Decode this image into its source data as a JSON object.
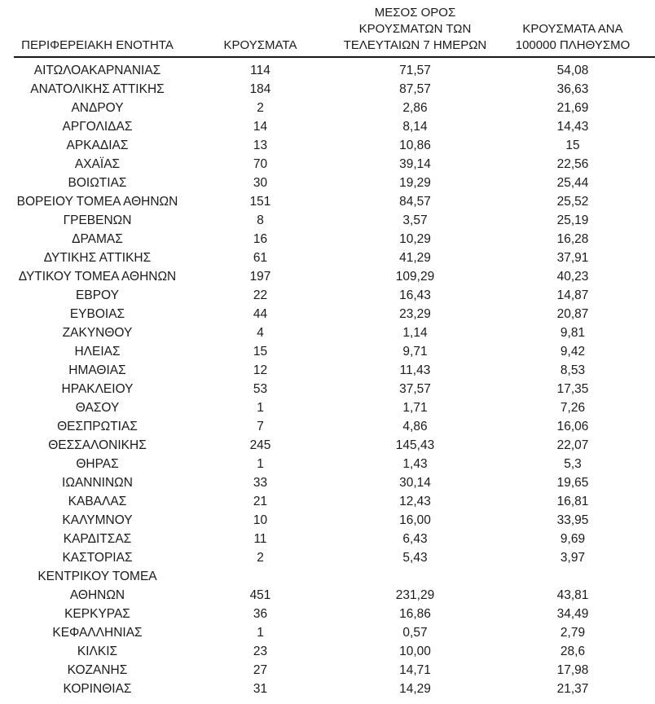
{
  "page": {
    "background_color": "#ffffff",
    "text_color": "#1b1b1b",
    "rule_color": "#161616"
  },
  "table": {
    "columns": [
      {
        "id": "region",
        "label": "ΠΕΡΙΦΕΡΕΙΑΚΗ ΕΝΟΤΗΤΑ"
      },
      {
        "id": "cases",
        "label": "ΚΡΟΥΣΜΑΤΑ"
      },
      {
        "id": "avg7day",
        "label": "ΜΕΣΟΣ ΟΡΟΣ\nΚΡΟΥΣΜΑΤΩΝ ΤΩΝ\nΤΕΛΕΥΤΑΙΩΝ 7 ΗΜΕΡΩΝ"
      },
      {
        "id": "per100k",
        "label": "ΚΡΟΥΣΜΑΤΑ ΑΝΑ\n100000 ΠΛΗΘΥΣΜΟ"
      }
    ],
    "rows": [
      [
        "ΑΙΤΩΛΟΑΚΑΡΝΑΝΙΑΣ",
        "114",
        "71,57",
        "54,08"
      ],
      [
        "ΑΝΑΤΟΛΙΚΗΣ ΑΤΤΙΚΗΣ",
        "184",
        "87,57",
        "36,63"
      ],
      [
        "ΑΝΔΡΟΥ",
        "2",
        "2,86",
        "21,69"
      ],
      [
        "ΑΡΓΟΛΙΔΑΣ",
        "14",
        "8,14",
        "14,43"
      ],
      [
        "ΑΡΚΑΔΙΑΣ",
        "13",
        "10,86",
        "15"
      ],
      [
        "ΑΧΑΪΑΣ",
        "70",
        "39,14",
        "22,56"
      ],
      [
        "ΒΟΙΩΤΙΑΣ",
        "30",
        "19,29",
        "25,44"
      ],
      [
        "ΒΟΡΕΙΟΥ ΤΟΜΕΑ ΑΘΗΝΩΝ",
        "151",
        "84,57",
        "25,52"
      ],
      [
        "ΓΡΕΒΕΝΩΝ",
        "8",
        "3,57",
        "25,19"
      ],
      [
        "ΔΡΑΜΑΣ",
        "16",
        "10,29",
        "16,28"
      ],
      [
        "ΔΥΤΙΚΗΣ ΑΤΤΙΚΗΣ",
        "61",
        "41,29",
        "37,91"
      ],
      [
        "ΔΥΤΙΚΟΥ ΤΟΜΕΑ ΑΘΗΝΩΝ",
        "197",
        "109,29",
        "40,23"
      ],
      [
        "ΕΒΡΟΥ",
        "22",
        "16,43",
        "14,87"
      ],
      [
        "ΕΥΒΟΙΑΣ",
        "44",
        "23,29",
        "20,87"
      ],
      [
        "ΖΑΚΥΝΘΟΥ",
        "4",
        "1,14",
        "9,81"
      ],
      [
        "ΗΛΕΙΑΣ",
        "15",
        "9,71",
        "9,42"
      ],
      [
        "ΗΜΑΘΙΑΣ",
        "12",
        "11,43",
        "8,53"
      ],
      [
        "ΗΡΑΚΛΕΙΟΥ",
        "53",
        "37,57",
        "17,35"
      ],
      [
        "ΘΑΣΟΥ",
        "1",
        "1,71",
        "7,26"
      ],
      [
        "ΘΕΣΠΡΩΤΙΑΣ",
        "7",
        "4,86",
        "16,06"
      ],
      [
        "ΘΕΣΣΑΛΟΝΙΚΗΣ",
        "245",
        "145,43",
        "22,07"
      ],
      [
        "ΘΗΡΑΣ",
        "1",
        "1,43",
        "5,3"
      ],
      [
        "ΙΩΑΝΝΙΝΩΝ",
        "33",
        "30,14",
        "19,65"
      ],
      [
        "ΚΑΒΑΛΑΣ",
        "21",
        "12,43",
        "16,81"
      ],
      [
        "ΚΑΛΥΜΝΟΥ",
        "10",
        "16,00",
        "33,95"
      ],
      [
        "ΚΑΡΔΙΤΣΑΣ",
        "11",
        "6,43",
        "9,69"
      ],
      [
        "ΚΑΣΤΟΡΙΑΣ",
        "2",
        "5,43",
        "3,97"
      ],
      [
        "ΚΕΝΤΡΙΚΟΥ ΤΟΜΕΑ\nΑΘΗΝΩΝ",
        "451",
        "231,29",
        "43,81"
      ],
      [
        "ΚΕΡΚΥΡΑΣ",
        "36",
        "16,86",
        "34,49"
      ],
      [
        "ΚΕΦΑΛΛΗΝΙΑΣ",
        "1",
        "0,57",
        "2,79"
      ],
      [
        "ΚΙΛΚΙΣ",
        "23",
        "10,00",
        "28,6"
      ],
      [
        "ΚΟΖΑΝΗΣ",
        "27",
        "14,71",
        "17,98"
      ],
      [
        "ΚΟΡΙΝΘΙΑΣ",
        "31",
        "14,29",
        "21,37"
      ]
    ],
    "cell_names": [
      "region-cell",
      "cases-cell",
      "avg7day-cell",
      "per100k-cell"
    ]
  }
}
